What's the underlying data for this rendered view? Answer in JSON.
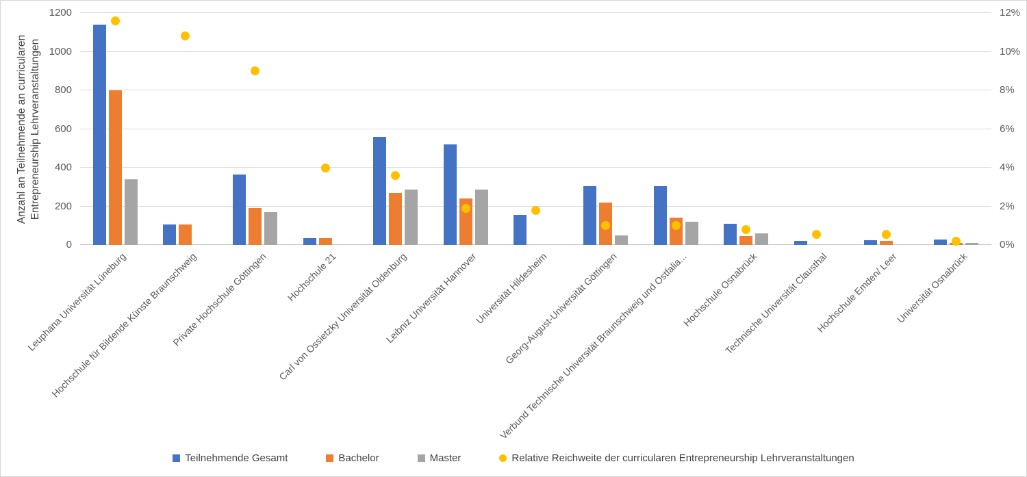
{
  "chart_data": {
    "type": "bar",
    "subtype": "clustered-bar-with-scatter-overlay",
    "title": "",
    "grid": "horizontal",
    "legend_position": "bottom",
    "background": "#FFFFFF",
    "categories": [
      "Leuphana Universität Lüneburg",
      "Hochschule für Bildende Künste Braunschweig",
      "Private Hochschule Göttingen",
      "Hochschule 21",
      "Carl von Ossietzky Universität Oldenburg",
      "Leibniz Universität Hannover",
      "Universität Hildesheim",
      "Georg-August-Universität Göttingen",
      "Verbund Technische Universität Braunschweig und Ostfalia...",
      "Hochschule Osnabrück",
      "Technische Universität Clausthal",
      "Hochschule Emden/ Leer",
      "Universität Osnabrück"
    ],
    "series": [
      {
        "name": "Teilnehmende Gesamt",
        "kind": "bar",
        "axis": "left",
        "color": "#4472C4",
        "values": [
          1140,
          105,
          365,
          35,
          560,
          520,
          155,
          305,
          305,
          110,
          20,
          25,
          30
        ]
      },
      {
        "name": "Bachelor",
        "kind": "bar",
        "axis": "left",
        "color": "#ED7D31",
        "values": [
          800,
          105,
          190,
          35,
          270,
          240,
          0,
          220,
          140,
          45,
          0,
          20,
          10
        ]
      },
      {
        "name": "Master",
        "kind": "bar",
        "axis": "left",
        "color": "#A5A5A5",
        "values": [
          340,
          0,
          170,
          0,
          285,
          285,
          0,
          50,
          120,
          60,
          0,
          0,
          12
        ]
      },
      {
        "name": "Relative Reichweite der curricularen Entrepreneurship Lehrveranstaltungen",
        "kind": "scatter",
        "axis": "right",
        "color": "#FFC000",
        "values": [
          11.6,
          10.8,
          9.0,
          4.0,
          3.6,
          1.9,
          1.8,
          1.0,
          1.0,
          0.8,
          0.55,
          0.55,
          0.2
        ]
      }
    ],
    "left_axis": {
      "title_line1": "Anzahl an Teilnehmende an curricularen",
      "title_line2": "Entrepreneurship Lehrveranstaltungen",
      "min": 0,
      "max": 1200,
      "step": 200,
      "tick_labels": [
        "0",
        "200",
        "400",
        "600",
        "800",
        "1000",
        "1200"
      ]
    },
    "right_axis": {
      "title": "",
      "min": 0,
      "max": 12,
      "step": 2,
      "unit": "%",
      "tick_labels": [
        "0%",
        "2%",
        "4%",
        "6%",
        "8%",
        "10%",
        "12%"
      ]
    },
    "colors": {
      "gridline": "#D9D9D9",
      "axis_line": "#BFBFBF",
      "tick_text": "#595959",
      "legend_text": "#404040"
    }
  }
}
